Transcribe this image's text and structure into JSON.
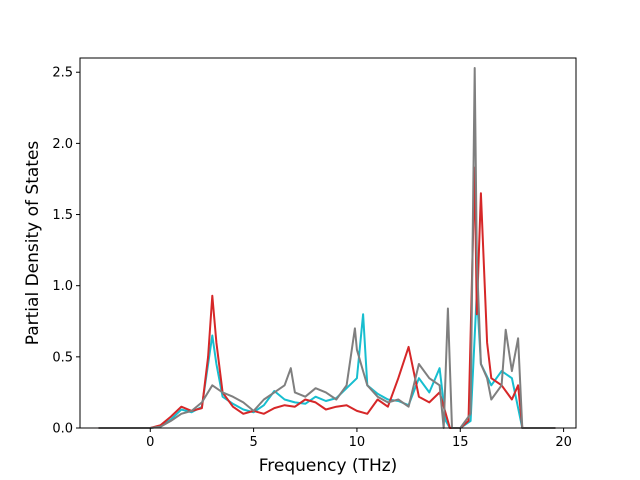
{
  "chart_data": {
    "type": "line",
    "title": "",
    "xlabel": "Frequency (THz)",
    "ylabel": "Partial Density of States",
    "xlim": [
      -3.4,
      20.6
    ],
    "ylim": [
      0.0,
      2.6
    ],
    "xticks": [
      0,
      5,
      10,
      15,
      20
    ],
    "xtick_labels": [
      "0",
      "5",
      "10",
      "15",
      "20"
    ],
    "yticks": [
      0.0,
      0.5,
      1.0,
      1.5,
      2.0,
      2.5
    ],
    "ytick_labels": [
      "0.0",
      "0.5",
      "1.0",
      "1.5",
      "2.0",
      "2.5"
    ],
    "grid": false,
    "legend": "none",
    "colors": [
      "#1f77b4",
      "#ff7f0e",
      "#2ca02c",
      "#d62728",
      "#9467bd",
      "#8c564b",
      "#e377c2",
      "#7f7f7f",
      "#bcbd22",
      "#17becf"
    ],
    "series": [
      {
        "color": "#17becf",
        "x": [
          -2.5,
          0.0,
          0.5,
          1.0,
          1.5,
          2.0,
          2.5,
          2.9,
          3.0,
          3.2,
          3.5,
          4.0,
          4.5,
          5.0,
          5.5,
          6.0,
          6.5,
          7.0,
          7.5,
          8.0,
          8.5,
          9.0,
          9.5,
          10.0,
          10.3,
          10.5,
          11.0,
          11.5,
          12.0,
          12.5,
          13.0,
          13.5,
          14.0,
          14.3,
          14.5,
          15.0,
          15.5,
          15.8,
          16.0,
          16.5,
          17.0,
          17.5,
          18.0,
          19.6
        ],
        "y": [
          0.0,
          0.0,
          0.01,
          0.06,
          0.13,
          0.11,
          0.15,
          0.55,
          0.65,
          0.45,
          0.22,
          0.17,
          0.13,
          0.11,
          0.16,
          0.26,
          0.2,
          0.18,
          0.17,
          0.22,
          0.19,
          0.21,
          0.28,
          0.35,
          0.8,
          0.3,
          0.24,
          0.2,
          0.19,
          0.16,
          0.35,
          0.25,
          0.42,
          0.05,
          0.0,
          0.0,
          0.05,
          0.95,
          0.45,
          0.3,
          0.4,
          0.35,
          0.0,
          0.0
        ]
      },
      {
        "color": "#d62728",
        "x": [
          -2.5,
          0.0,
          0.5,
          1.0,
          1.5,
          2.0,
          2.5,
          2.8,
          3.0,
          3.2,
          3.5,
          4.0,
          4.5,
          5.0,
          5.5,
          6.0,
          6.5,
          7.0,
          7.5,
          8.0,
          8.5,
          9.0,
          9.5,
          10.0,
          10.5,
          11.0,
          11.5,
          12.0,
          12.5,
          13.0,
          13.5,
          14.0,
          14.3,
          14.5,
          15.0,
          15.4,
          15.7,
          15.8,
          16.0,
          16.3,
          16.5,
          17.0,
          17.5,
          17.8,
          18.0,
          19.6
        ],
        "y": [
          0.0,
          0.0,
          0.02,
          0.08,
          0.15,
          0.12,
          0.14,
          0.5,
          0.93,
          0.6,
          0.25,
          0.15,
          0.1,
          0.12,
          0.1,
          0.14,
          0.16,
          0.15,
          0.2,
          0.18,
          0.13,
          0.15,
          0.16,
          0.12,
          0.1,
          0.2,
          0.15,
          0.35,
          0.57,
          0.22,
          0.18,
          0.25,
          0.1,
          0.0,
          0.0,
          0.05,
          1.83,
          0.8,
          1.65,
          0.6,
          0.35,
          0.3,
          0.2,
          0.3,
          0.0,
          0.0
        ]
      },
      {
        "color": "#7f7f7f",
        "x": [
          -2.5,
          0.0,
          0.5,
          1.0,
          1.5,
          2.0,
          2.5,
          3.0,
          3.5,
          4.0,
          4.5,
          5.0,
          5.5,
          6.0,
          6.5,
          6.8,
          7.0,
          7.5,
          8.0,
          8.5,
          9.0,
          9.5,
          9.9,
          10.0,
          10.3,
          10.5,
          11.0,
          11.5,
          12.0,
          12.5,
          13.0,
          13.5,
          14.0,
          14.2,
          14.4,
          14.6,
          15.0,
          15.5,
          15.7,
          15.8,
          16.0,
          16.3,
          16.5,
          17.0,
          17.2,
          17.5,
          17.8,
          18.0,
          19.6
        ],
        "y": [
          0.0,
          0.0,
          0.01,
          0.05,
          0.1,
          0.12,
          0.18,
          0.3,
          0.25,
          0.22,
          0.18,
          0.12,
          0.2,
          0.25,
          0.3,
          0.42,
          0.25,
          0.22,
          0.28,
          0.25,
          0.2,
          0.3,
          0.7,
          0.55,
          0.4,
          0.3,
          0.22,
          0.18,
          0.2,
          0.15,
          0.45,
          0.35,
          0.3,
          0.0,
          0.84,
          0.0,
          0.0,
          0.1,
          2.53,
          1.2,
          0.45,
          0.35,
          0.2,
          0.3,
          0.69,
          0.4,
          0.63,
          0.0,
          0.0
        ]
      }
    ]
  }
}
